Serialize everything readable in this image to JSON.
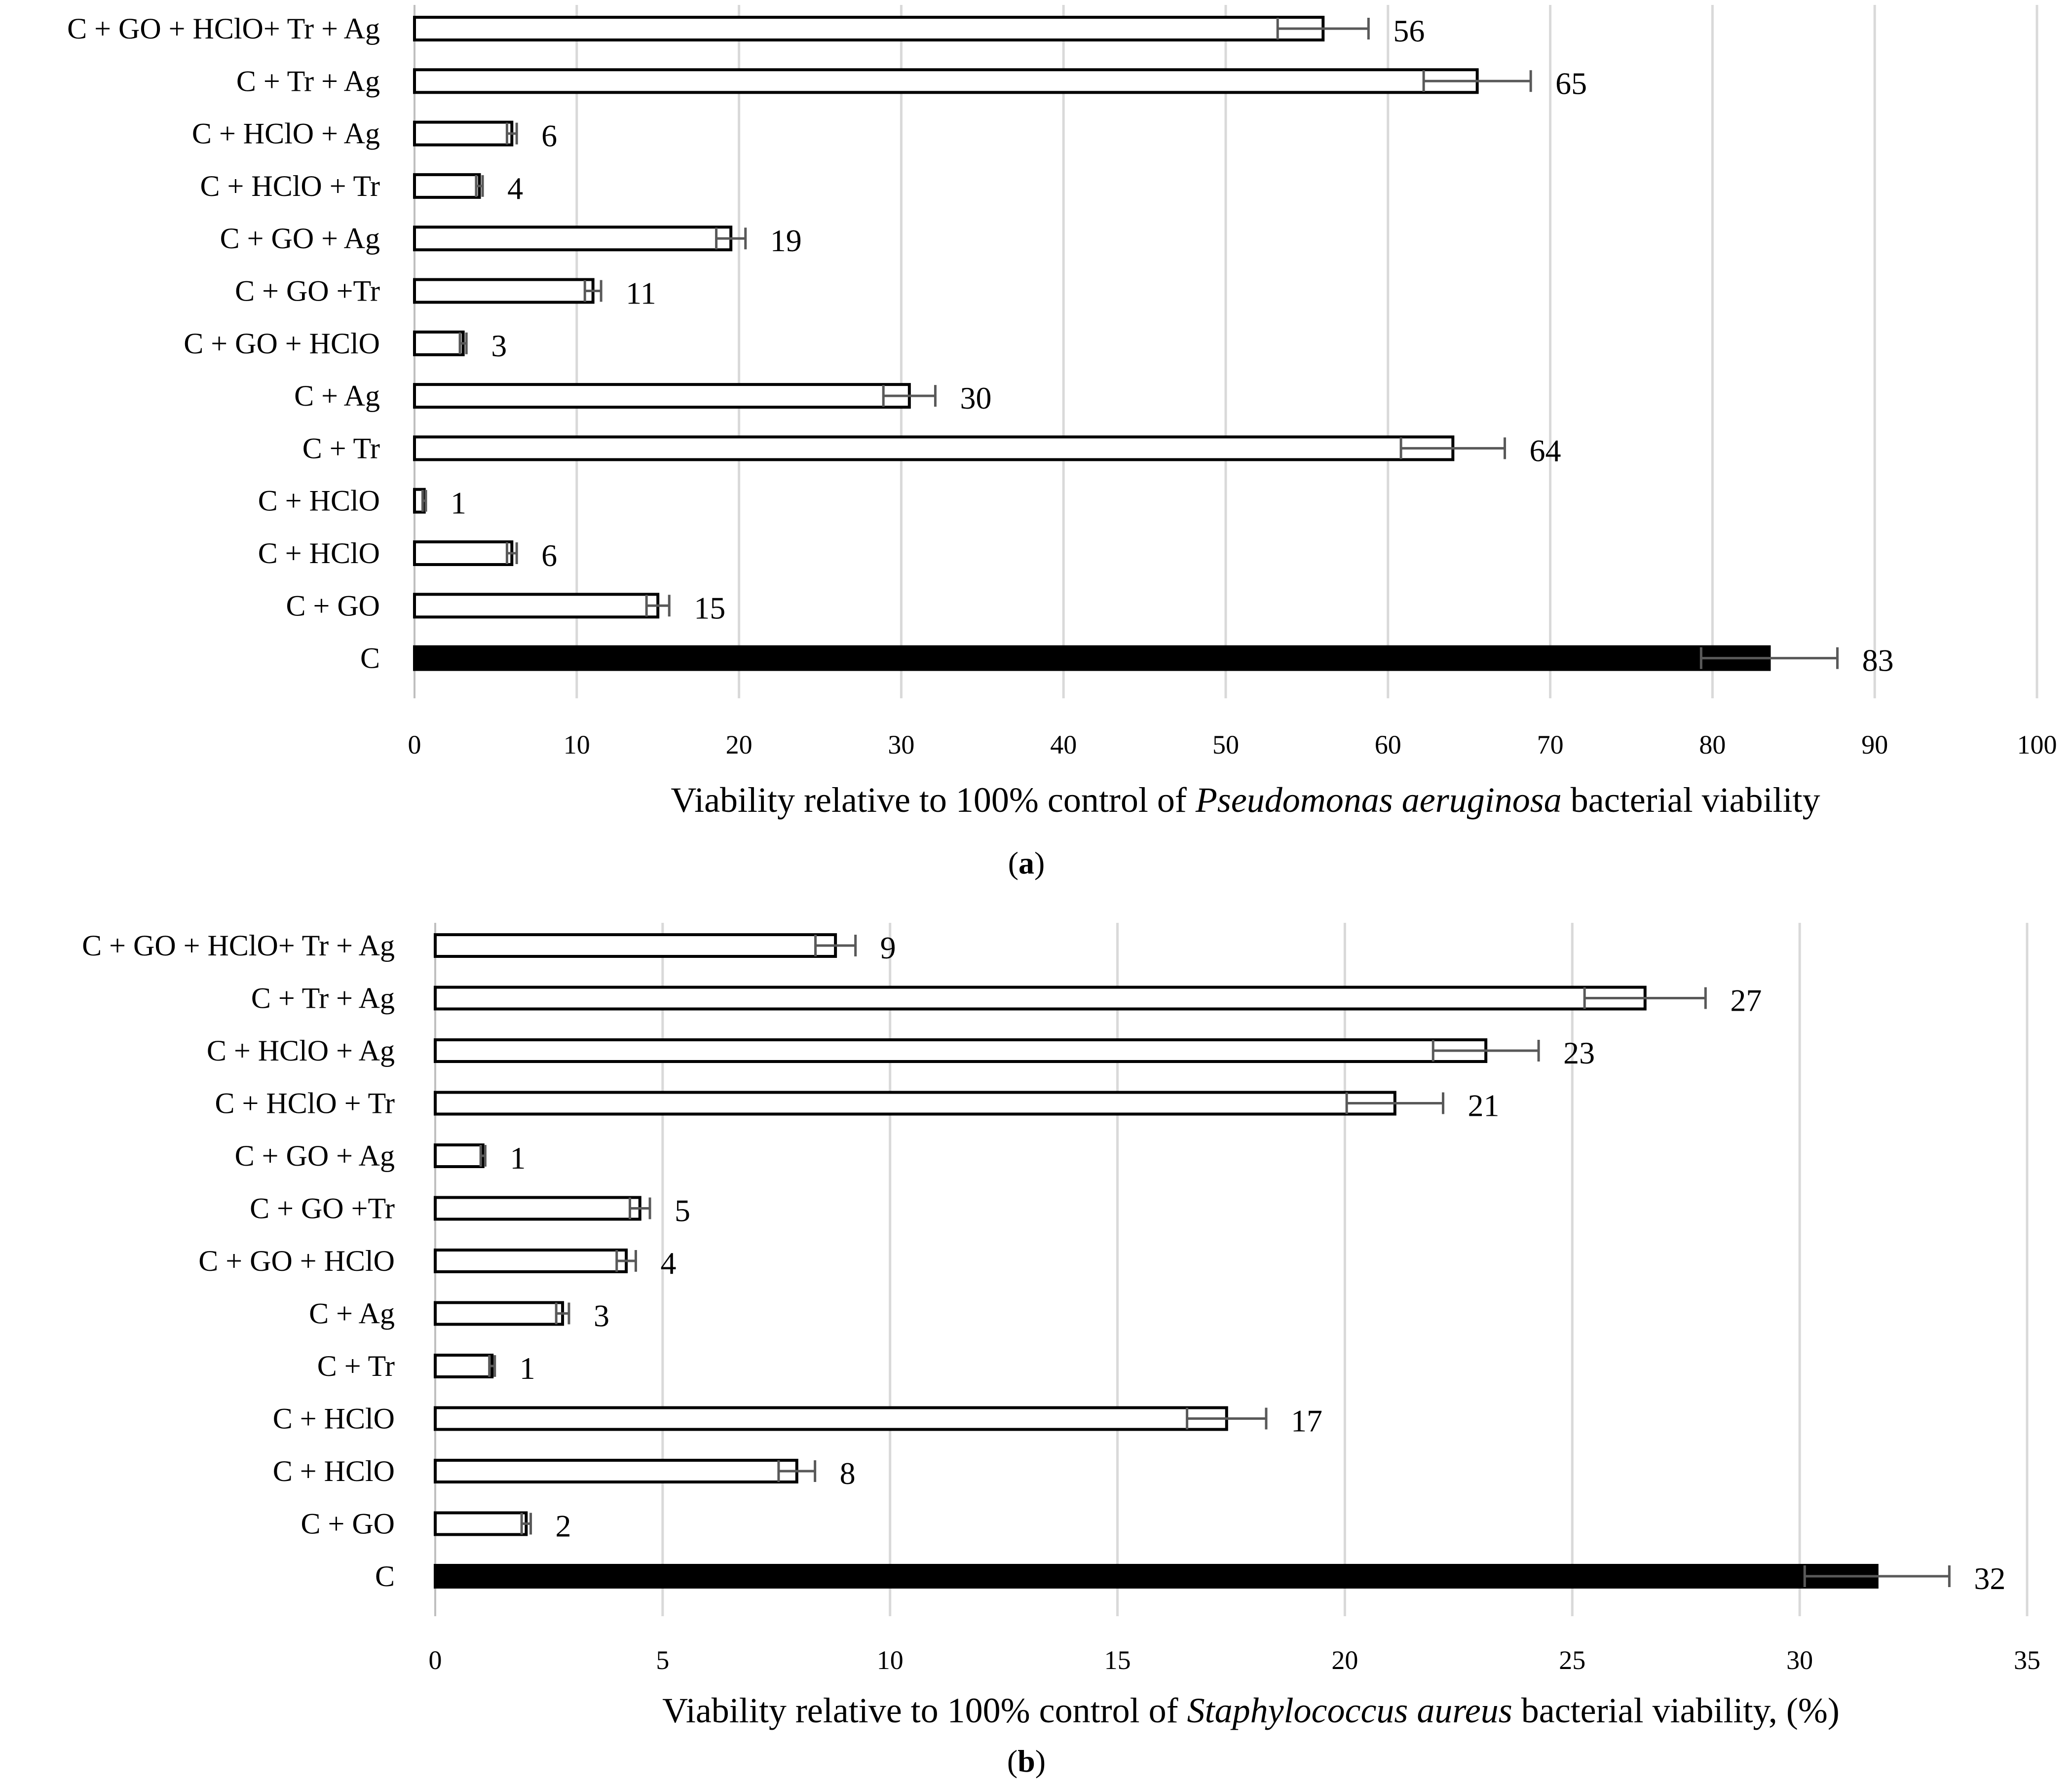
{
  "chart_data": [
    {
      "type": "bar",
      "orientation": "horizontal",
      "panel_label": "a",
      "categories": [
        "C + GO + HClO+ Tr + Ag",
        "C + Tr + Ag",
        "C + HClO + Ag",
        "C + HClO + Tr",
        "C + GO + Ag",
        "C + GO +Tr",
        "C + GO + HClO",
        "C + Ag",
        "C + Tr",
        "C + HClO",
        "C + HClO",
        "C + GO",
        "C"
      ],
      "values": [
        56,
        65.5,
        6,
        4,
        19.5,
        11,
        3,
        30.5,
        64,
        0.6,
        6,
        15,
        83.5
      ],
      "errors": [
        2.8,
        3.3,
        0.3,
        0.2,
        0.9,
        0.5,
        0.2,
        1.6,
        3.2,
        0.1,
        0.3,
        0.7,
        4.2
      ],
      "data_labels": [
        "56",
        "65",
        "6",
        "4",
        "19",
        "11",
        "3",
        "30",
        "64",
        "1",
        "6",
        "15",
        "83"
      ],
      "highlight_index": 12,
      "xlim": [
        0,
        100
      ],
      "xticks": [
        0,
        10,
        20,
        30,
        40,
        50,
        60,
        70,
        80,
        90,
        100
      ],
      "xlabel_prefix": "Viability relative to 100% control of ",
      "xlabel_italic": "Pseudomonas aeruginosa",
      "xlabel_suffix": " bacterial viability",
      "grid": "vertical"
    },
    {
      "type": "bar",
      "orientation": "horizontal",
      "panel_label": "b",
      "categories": [
        "C + GO + HClO+ Tr + Ag",
        "C + Tr + Ag",
        "C + HClO + Ag",
        "C + HClO + Tr",
        "C + GO + Ag",
        "C + GO +Tr",
        "C + GO + HClO",
        "C + Ag",
        "C + Tr",
        "C + HClO",
        "C + HClO",
        "C + GO",
        "C"
      ],
      "values": [
        8.8,
        26.6,
        23.1,
        21.1,
        1.05,
        4.5,
        4.2,
        2.8,
        1.25,
        17.4,
        7.95,
        2.0,
        31.7
      ],
      "errors": [
        0.44,
        1.33,
        1.16,
        1.06,
        0.05,
        0.22,
        0.21,
        0.14,
        0.06,
        0.87,
        0.4,
        0.1,
        1.59
      ],
      "data_labels": [
        "9",
        "27",
        "23",
        "21",
        "1",
        "5",
        "4",
        "3",
        "1",
        "17",
        "8",
        "2",
        "32"
      ],
      "highlight_index": 12,
      "xlim": [
        0,
        35
      ],
      "xticks": [
        0,
        5,
        10,
        15,
        20,
        25,
        30,
        35
      ],
      "xlabel_prefix": "Viability relative to 100% control of ",
      "xlabel_italic": "Staphylococcus aureus",
      "xlabel_suffix": " bacterial viability, (%)",
      "grid": "vertical"
    }
  ],
  "colors": {
    "bar_fill": "#ffffff",
    "bar_stroke": "#000000",
    "highlight_fill": "#000000",
    "error_bar": "#595959",
    "gridline": "#d9d9d9"
  }
}
